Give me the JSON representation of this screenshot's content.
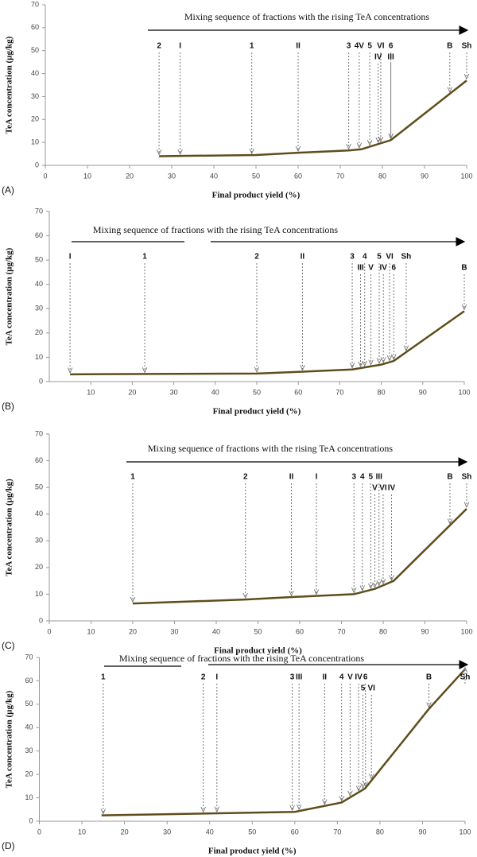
{
  "chart_data": [
    {
      "type": "line",
      "panel_label": "(A)",
      "annotation_title": "Mixing sequence of fractions with the rising TeA concentrations",
      "x_label": "Final product yield (%)",
      "y_label": "TeA concentration (µg/kg)",
      "xlim": [
        0,
        100
      ],
      "ylim": [
        0,
        70
      ],
      "xticks": [
        0,
        10,
        20,
        30,
        40,
        50,
        60,
        70,
        80,
        90,
        100
      ],
      "yticks": [
        0,
        10,
        20,
        30,
        40,
        50,
        60,
        70
      ],
      "x": [
        27,
        50,
        60,
        72,
        75,
        82,
        100
      ],
      "series": [
        {
          "color": "#5e4d1c",
          "values": [
            4,
            4.5,
            5.5,
            6.5,
            7,
            11,
            37
          ]
        }
      ],
      "annotations": [
        {
          "label": "2",
          "x": 27
        },
        {
          "label": "I",
          "x": 32
        },
        {
          "label": "1",
          "x": 49
        },
        {
          "label": "II",
          "x": 60
        },
        {
          "label": "3",
          "x": 72
        },
        {
          "label": "4V",
          "x": 74.5
        },
        {
          "label": "5",
          "x": 77
        },
        {
          "label": "VI",
          "x": 79.6
        },
        {
          "label": "6",
          "x": 82
        },
        {
          "label": "IV",
          "x": 79
        },
        {
          "label": "III",
          "x": 82
        },
        {
          "label": "B",
          "x": 96
        },
        {
          "label": "Sh",
          "x": 100
        }
      ]
    },
    {
      "type": "line",
      "panel_label": "(B)",
      "annotation_title": "Mixing sequence of fractions with the rising TeA concentrations",
      "x_label": "Final product yield (%)",
      "y_label": "TeA concentration (µg/kg)",
      "xlim": [
        0,
        100
      ],
      "ylim": [
        0,
        70
      ],
      "xticks": [
        10,
        20,
        30,
        40,
        50,
        60,
        70,
        80,
        90,
        100
      ],
      "yticks": [
        0,
        10,
        20,
        30,
        40,
        50,
        60,
        70
      ],
      "x": [
        5,
        50,
        60,
        73,
        80,
        83,
        100
      ],
      "series": [
        {
          "color": "#5e4d1c",
          "values": [
            3,
            3.3,
            4,
            5,
            7,
            8.5,
            29
          ]
        }
      ],
      "annotations": [
        {
          "label": "I",
          "x": 5
        },
        {
          "label": "1",
          "x": 23
        },
        {
          "label": "2",
          "x": 50
        },
        {
          "label": "II",
          "x": 61
        },
        {
          "label": "3",
          "x": 73
        },
        {
          "label": "4",
          "x": 76
        },
        {
          "label": "5",
          "x": 79.5
        },
        {
          "label": "VI",
          "x": 82
        },
        {
          "label": "Sh",
          "x": 86
        },
        {
          "label": "III",
          "x": 75
        },
        {
          "label": "V",
          "x": 77.5
        },
        {
          "label": "IV",
          "x": 80.5
        },
        {
          "label": "6",
          "x": 83
        },
        {
          "label": "B",
          "x": 100
        }
      ]
    },
    {
      "type": "line",
      "panel_label": "(C)",
      "annotation_title": "Mixing sequence of fractions with the rising TeA concentrations",
      "x_label": "Final product yield (%)",
      "y_label": "TeA concentration (µg/kg)",
      "xlim": [
        0,
        100
      ],
      "ylim": [
        0,
        70
      ],
      "xticks": [
        0,
        10,
        20,
        30,
        40,
        50,
        60,
        70,
        80,
        90,
        100
      ],
      "yticks": [
        0,
        10,
        20,
        30,
        40,
        50,
        60,
        70
      ],
      "x": [
        20,
        47,
        59,
        73,
        78,
        82.5,
        100
      ],
      "series": [
        {
          "color": "#5e4d1c",
          "values": [
            6.5,
            8,
            9,
            10,
            12,
            15,
            42
          ]
        }
      ],
      "annotations": [
        {
          "label": "1",
          "x": 20
        },
        {
          "label": "2",
          "x": 47
        },
        {
          "label": "II",
          "x": 58
        },
        {
          "label": "I",
          "x": 64
        },
        {
          "label": "3",
          "x": 73
        },
        {
          "label": "4",
          "x": 75
        },
        {
          "label": "5",
          "x": 77
        },
        {
          "label": "III",
          "x": 79
        },
        {
          "label": "B",
          "x": 96
        },
        {
          "label": "Sh",
          "x": 100
        },
        {
          "label": "V",
          "x": 78
        },
        {
          "label": "VI",
          "x": 80
        },
        {
          "label": "IV",
          "x": 82
        }
      ]
    },
    {
      "type": "line",
      "panel_label": "(D)",
      "annotation_title": "Mixing sequence of fractions with the rising TeA concentrations",
      "x_label": "Final product yield (%)",
      "y_label": "TeA concentration (µg/kg)",
      "xlim": [
        0,
        100
      ],
      "ylim": [
        0,
        70
      ],
      "xticks": [
        0,
        10,
        20,
        30,
        40,
        50,
        60,
        70,
        80,
        90,
        100
      ],
      "yticks": [
        0,
        10,
        20,
        30,
        40,
        50,
        60,
        70
      ],
      "x": [
        14.6,
        60,
        71,
        76.5,
        91.5,
        100
      ],
      "series": [
        {
          "color": "#5e4d1c",
          "values": [
            2.5,
            4,
            8,
            14,
            48,
            65
          ]
        }
      ],
      "annotations": [
        {
          "label": "1",
          "x": 15
        },
        {
          "label": "2",
          "x": 38.5
        },
        {
          "label": "I",
          "x": 41.7
        },
        {
          "label": "3",
          "x": 59.4
        },
        {
          "label": "III",
          "x": 61
        },
        {
          "label": "II",
          "x": 67
        },
        {
          "label": "4",
          "x": 71
        },
        {
          "label": "V",
          "x": 73
        },
        {
          "label": "IV",
          "x": 75
        },
        {
          "label": "6",
          "x": 76.6
        },
        {
          "label": "B",
          "x": 91.5
        },
        {
          "label": "Sh",
          "x": 100
        },
        {
          "label": "5",
          "x": 76
        },
        {
          "label": "VI",
          "x": 78
        }
      ]
    }
  ]
}
